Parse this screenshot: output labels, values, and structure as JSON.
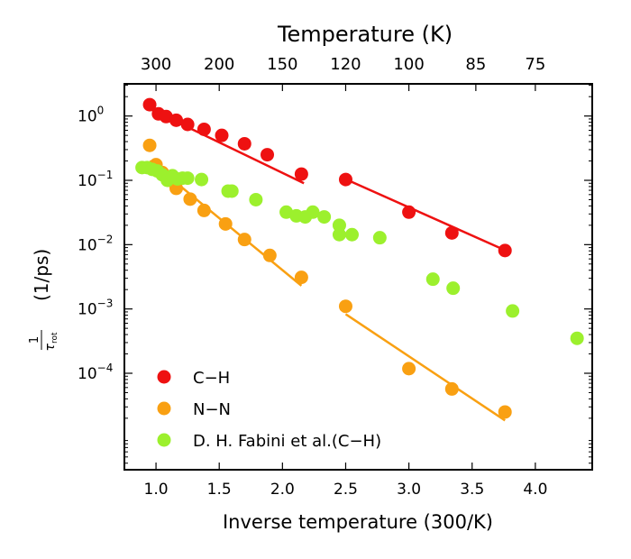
{
  "chart_data": {
    "type": "scatter",
    "xlabel": "Inverse temperature (300/K)",
    "top_xlabel": "Temperature (K)",
    "ylabel": "(1/ps)",
    "ylabel_fraction": {
      "numerator": "1",
      "denominator": "τ",
      "subscript": "rot"
    },
    "xlim": [
      0.75,
      4.45
    ],
    "ylim_log10": [
      -5.5,
      0.5
    ],
    "x_ticks": [
      1.0,
      1.5,
      2.0,
      2.5,
      3.0,
      3.5,
      4.0
    ],
    "x_tick_labels": [
      "1.0",
      "1.5",
      "2.0",
      "2.5",
      "3.0",
      "3.5",
      "4.0"
    ],
    "y_ticks_log10": [
      0,
      -1,
      -2,
      -3,
      -4
    ],
    "y_tick_base": "10",
    "y_tick_exponents": [
      "0",
      "−1",
      "−2",
      "−3",
      "−4"
    ],
    "top_ticks": [
      300,
      200,
      150,
      120,
      100,
      85,
      75
    ],
    "top_tick_labels": [
      "300",
      "200",
      "150",
      "120",
      "100",
      "85",
      "75"
    ],
    "legend_position": "bottom-left",
    "series": [
      {
        "name": "C−H",
        "color": "#ee1111",
        "points": [
          [
            0.95,
            1.5
          ],
          [
            1.02,
            1.08
          ],
          [
            1.08,
            0.98
          ],
          [
            1.16,
            0.86
          ],
          [
            1.25,
            0.74
          ],
          [
            1.38,
            0.62
          ],
          [
            1.52,
            0.5
          ],
          [
            1.7,
            0.37
          ],
          [
            1.88,
            0.25
          ],
          [
            2.15,
            0.125
          ],
          [
            2.5,
            0.103
          ],
          [
            3.0,
            0.032
          ],
          [
            3.34,
            0.0152
          ],
          [
            3.76,
            0.0081
          ]
        ],
        "fits": [
          {
            "x": [
              0.93,
              2.17
            ],
            "y": [
              1.35,
              0.09
            ]
          },
          {
            "x": [
              2.5,
              3.76
            ],
            "y": [
              0.104,
              0.0082
            ]
          }
        ]
      },
      {
        "name": "N−N",
        "color": "#f9a012",
        "points": [
          [
            0.95,
            0.35
          ],
          [
            1.0,
            0.175
          ],
          [
            1.05,
            0.132
          ],
          [
            1.1,
            0.1
          ],
          [
            1.16,
            0.075
          ],
          [
            1.27,
            0.051
          ],
          [
            1.38,
            0.034
          ],
          [
            1.55,
            0.021
          ],
          [
            1.7,
            0.012
          ],
          [
            1.9,
            0.0068
          ],
          [
            2.15,
            0.0031
          ],
          [
            2.5,
            0.0011
          ],
          [
            3.0,
            0.000118
          ],
          [
            3.34,
            5.7e-05
          ],
          [
            3.76,
            2.5e-05
          ]
        ],
        "fits": [
          {
            "x": [
              0.95,
              2.15
            ],
            "y": [
              0.2,
              0.0023
            ]
          },
          {
            "x": [
              2.5,
              3.76
            ],
            "y": [
              0.00083,
              1.85e-05
            ]
          }
        ]
      },
      {
        "name": "D. H. Fabini et al.(C−H)",
        "color": "#9cf02d",
        "points": [
          [
            0.89,
            0.158
          ],
          [
            0.93,
            0.158
          ],
          [
            0.97,
            0.148
          ],
          [
            1.01,
            0.14
          ],
          [
            1.05,
            0.122
          ],
          [
            1.09,
            0.1
          ],
          [
            1.13,
            0.118
          ],
          [
            1.17,
            0.105
          ],
          [
            1.21,
            0.108
          ],
          [
            1.25,
            0.108
          ],
          [
            1.36,
            0.103
          ],
          [
            1.57,
            0.068
          ],
          [
            1.6,
            0.068
          ],
          [
            1.79,
            0.05
          ],
          [
            2.03,
            0.032
          ],
          [
            2.11,
            0.028
          ],
          [
            2.18,
            0.027
          ],
          [
            2.24,
            0.032
          ],
          [
            2.33,
            0.027
          ],
          [
            2.45,
            0.02
          ],
          [
            2.45,
            0.0143
          ],
          [
            2.55,
            0.0143
          ],
          [
            2.77,
            0.0128
          ],
          [
            3.19,
            0.0029
          ],
          [
            3.35,
            0.0021
          ],
          [
            3.82,
            0.00093
          ],
          [
            4.33,
            0.00035
          ]
        ]
      }
    ]
  }
}
